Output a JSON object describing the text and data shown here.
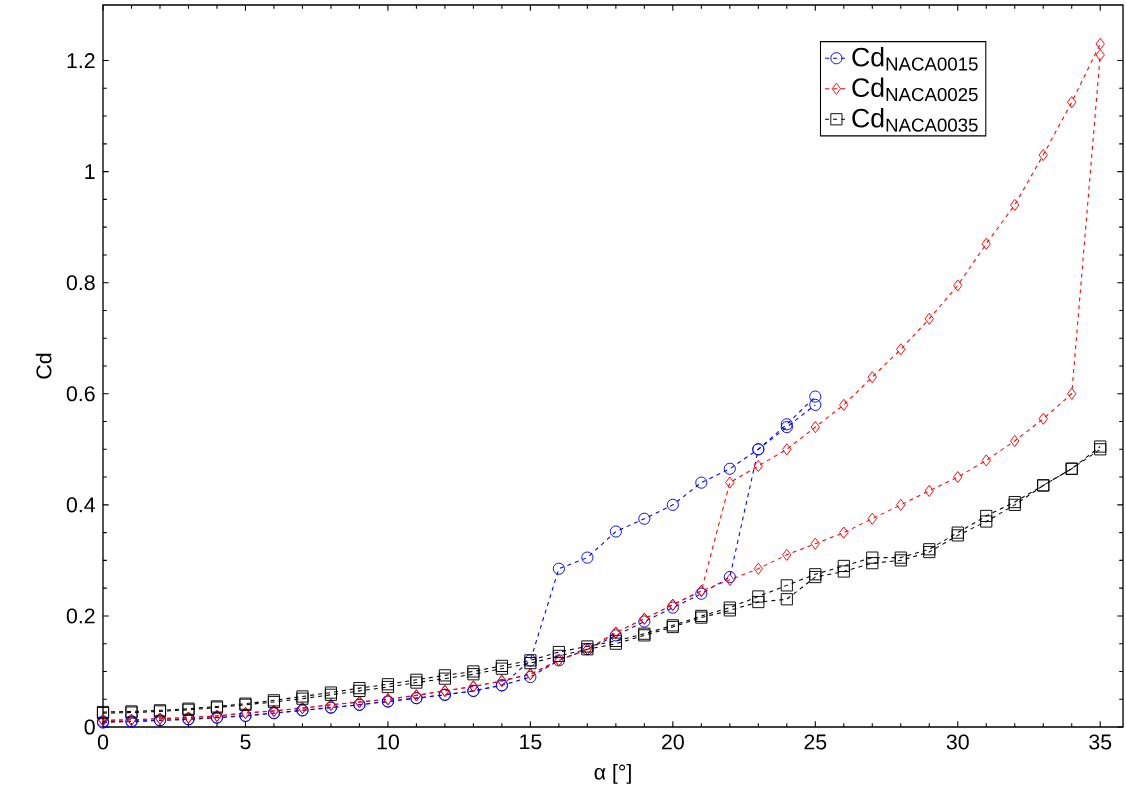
{
  "chart_data": {
    "type": "line",
    "xlabel": "α [°]",
    "ylabel": "Cd",
    "xlim": [
      0,
      35.8
    ],
    "ylim": [
      0,
      1.3
    ],
    "xticks": [
      0,
      5,
      10,
      15,
      20,
      25,
      30,
      35
    ],
    "yticks": [
      0,
      0.2,
      0.4,
      0.6,
      0.8,
      1,
      1.2
    ],
    "grid": false,
    "legend": "top right",
    "line_style": "dashed",
    "series": [
      {
        "name": "Cd$_{NACA0015}$",
        "color": "#0000ff",
        "marker": "circle",
        "x": [
          0,
          1,
          2,
          3,
          4,
          5,
          6,
          7,
          8,
          9,
          10,
          11,
          12,
          13,
          14,
          15,
          16,
          17,
          18,
          19,
          20,
          21,
          22,
          23,
          24,
          25
        ],
        "values": [
          0.01,
          0.01,
          0.012,
          0.014,
          0.017,
          0.02,
          0.025,
          0.03,
          0.035,
          0.04,
          0.046,
          0.052,
          0.058,
          0.065,
          0.075,
          0.09,
          0.12,
          0.14,
          0.165,
          0.19,
          0.215,
          0.24,
          0.27,
          0.5,
          0.545,
          0.595
        ]
      },
      {
        "color": "#0000ff",
        "marker": "circle",
        "x": [
          0,
          1,
          2,
          3,
          4,
          5,
          6,
          7,
          8,
          9,
          10,
          11,
          12,
          13,
          14,
          15,
          16,
          17,
          18,
          19,
          20,
          21,
          22,
          23,
          24,
          25
        ],
        "values": [
          0.008,
          0.01,
          0.012,
          0.014,
          0.017,
          0.02,
          0.025,
          0.03,
          0.035,
          0.04,
          0.046,
          0.052,
          0.058,
          0.065,
          0.075,
          0.12,
          0.285,
          0.305,
          0.352,
          0.375,
          0.4,
          0.44,
          0.465,
          0.5,
          0.54,
          0.58
        ]
      },
      {
        "name": "Cd$_{NACA0025}$",
        "color": "#ff0000",
        "marker": "diamond",
        "x": [
          0,
          1,
          2,
          3,
          4,
          5,
          6,
          7,
          8,
          9,
          10,
          11,
          12,
          13,
          14,
          15,
          16,
          17,
          18,
          19,
          20,
          21,
          22,
          23,
          24,
          25,
          26,
          27,
          28,
          29,
          30,
          31,
          32,
          33,
          34,
          35
        ],
        "values": [
          0.012,
          0.013,
          0.015,
          0.017,
          0.02,
          0.025,
          0.029,
          0.034,
          0.04,
          0.045,
          0.05,
          0.057,
          0.065,
          0.073,
          0.083,
          0.095,
          0.12,
          0.14,
          0.17,
          0.195,
          0.22,
          0.245,
          0.265,
          0.285,
          0.31,
          0.33,
          0.35,
          0.375,
          0.4,
          0.425,
          0.45,
          0.48,
          0.515,
          0.555,
          0.6,
          1.21
        ]
      },
      {
        "color": "#ff0000",
        "marker": "diamond",
        "x": [
          0,
          1,
          2,
          3,
          4,
          5,
          6,
          7,
          8,
          9,
          10,
          11,
          12,
          13,
          14,
          15,
          16,
          17,
          18,
          19,
          20,
          21,
          22,
          23,
          24,
          25,
          26,
          27,
          28,
          29,
          30,
          31,
          32,
          33,
          34,
          35
        ],
        "values": [
          0.012,
          0.013,
          0.015,
          0.017,
          0.02,
          0.025,
          0.029,
          0.034,
          0.04,
          0.045,
          0.05,
          0.057,
          0.065,
          0.073,
          0.083,
          0.095,
          0.12,
          0.14,
          0.17,
          0.195,
          0.22,
          0.245,
          0.44,
          0.47,
          0.5,
          0.54,
          0.58,
          0.63,
          0.68,
          0.735,
          0.795,
          0.87,
          0.94,
          1.03,
          1.125,
          1.23
        ]
      },
      {
        "name": "Cd$_{NACA0035}$",
        "color": "#000000",
        "marker": "square",
        "x": [
          0,
          1,
          2,
          3,
          4,
          5,
          6,
          7,
          8,
          9,
          10,
          11,
          12,
          13,
          14,
          15,
          16,
          17,
          18,
          19,
          20,
          21,
          22,
          23,
          24,
          25,
          26,
          27,
          28,
          29,
          30,
          31,
          32,
          33,
          34,
          35
        ],
        "values": [
          0.027,
          0.028,
          0.03,
          0.033,
          0.037,
          0.042,
          0.048,
          0.055,
          0.062,
          0.07,
          0.077,
          0.085,
          0.093,
          0.1,
          0.11,
          0.12,
          0.135,
          0.145,
          0.155,
          0.168,
          0.183,
          0.2,
          0.215,
          0.235,
          0.255,
          0.275,
          0.29,
          0.305,
          0.305,
          0.32,
          0.35,
          0.38,
          0.405,
          0.435,
          0.465,
          0.5
        ]
      },
      {
        "color": "#000000",
        "marker": "square",
        "x": [
          0,
          1,
          2,
          3,
          4,
          5,
          6,
          7,
          8,
          9,
          10,
          11,
          12,
          13,
          14,
          15,
          16,
          17,
          18,
          19,
          20,
          21,
          22,
          23,
          24,
          25,
          26,
          27,
          28,
          29,
          30,
          31,
          32,
          33,
          34,
          35
        ],
        "values": [
          0.025,
          0.026,
          0.028,
          0.031,
          0.035,
          0.04,
          0.045,
          0.051,
          0.058,
          0.065,
          0.072,
          0.08,
          0.087,
          0.095,
          0.105,
          0.115,
          0.128,
          0.14,
          0.15,
          0.165,
          0.18,
          0.197,
          0.21,
          0.225,
          0.23,
          0.27,
          0.28,
          0.295,
          0.3,
          0.315,
          0.345,
          0.37,
          0.4,
          0.435,
          0.465,
          0.505
        ]
      }
    ]
  }
}
